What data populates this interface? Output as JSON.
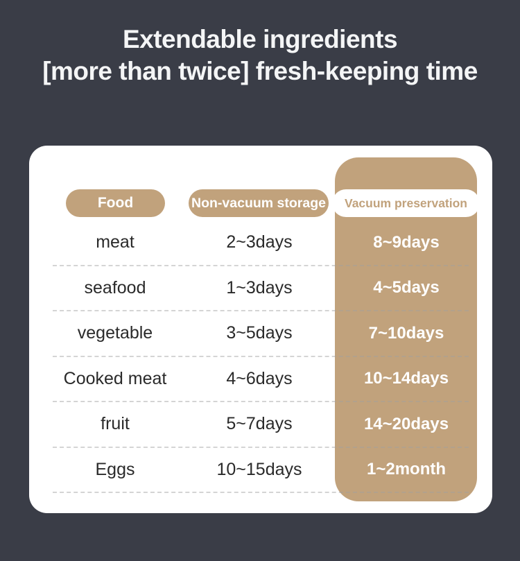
{
  "title": {
    "line1": "Extendable ingredients",
    "line2": "[more than twice] fresh-keeping time"
  },
  "table": {
    "columns": [
      {
        "label": "Food"
      },
      {
        "label": "Non-vacuum storage"
      },
      {
        "label": "Vacuum preservation"
      }
    ],
    "rows": [
      {
        "food": "meat",
        "non_vacuum": "2~3days",
        "vacuum": "8~9days"
      },
      {
        "food": "seafood",
        "non_vacuum": "1~3days",
        "vacuum": "4~5days"
      },
      {
        "food": "vegetable",
        "non_vacuum": "3~5days",
        "vacuum": "7~10days"
      },
      {
        "food": "Cooked meat",
        "non_vacuum": "4~6days",
        "vacuum": "10~14days"
      },
      {
        "food": "fruit",
        "non_vacuum": "5~7days",
        "vacuum": "14~20days"
      },
      {
        "food": "Eggs",
        "non_vacuum": "10~15days",
        "vacuum": "1~2month"
      }
    ]
  },
  "colors": {
    "background": "#3a3d47",
    "card": "#ffffff",
    "accent_tan": "#c1a27c",
    "text_dark": "#2a2a2a",
    "text_light": "#ffffff"
  },
  "chart_data": {
    "type": "table",
    "title": "Extendable ingredients [more than twice] fresh-keeping time",
    "columns": [
      "Food",
      "Non-vacuum storage",
      "Vacuum preservation"
    ],
    "rows": [
      [
        "meat",
        "2~3days",
        "8~9days"
      ],
      [
        "seafood",
        "1~3days",
        "4~5days"
      ],
      [
        "vegetable",
        "3~5days",
        "7~10days"
      ],
      [
        "Cooked meat",
        "4~6days",
        "10~14days"
      ],
      [
        "fruit",
        "5~7days",
        "14~20days"
      ],
      [
        "Eggs",
        "10~15days",
        "1~2month"
      ]
    ]
  }
}
